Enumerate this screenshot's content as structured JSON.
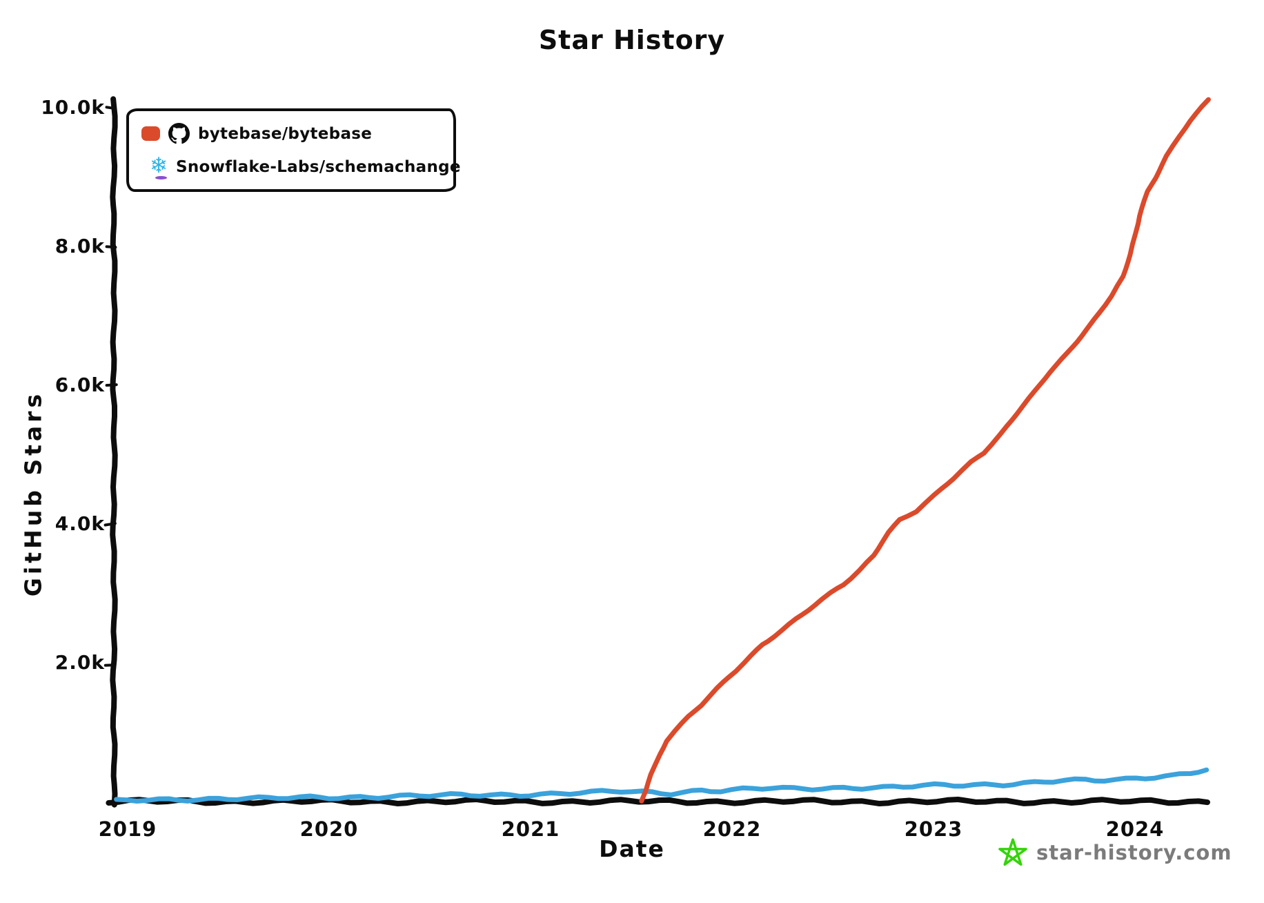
{
  "watermark": {
    "text": "star-history.com",
    "text_color": "#7b7b7b",
    "star_color": "#35d30a"
  },
  "icons": {
    "github": "github-octocat-mark",
    "snowflake_glyph": "❄",
    "snowflake_color": "#29B5E8",
    "snowflake_accent": "#8A4FD3",
    "watermark_star": "green-doodle-star"
  },
  "axis_color": "#0d0d0d",
  "chart_data": {
    "type": "line",
    "title": "Star History",
    "xlabel": "Date",
    "ylabel": "GitHub Stars",
    "grid": false,
    "legend_position": "top-left",
    "xlim": [
      2018.93,
      2024.36
    ],
    "ylim": [
      0,
      10100
    ],
    "x_ticks": [
      {
        "value": 2019,
        "label": "2019"
      },
      {
        "value": 2020,
        "label": "2020"
      },
      {
        "value": 2021,
        "label": "2021"
      },
      {
        "value": 2022,
        "label": "2022"
      },
      {
        "value": 2023,
        "label": "2023"
      },
      {
        "value": 2024,
        "label": "2024"
      }
    ],
    "y_ticks": [
      {
        "value": 2000,
        "label": "2.0k"
      },
      {
        "value": 4000,
        "label": "4.0k"
      },
      {
        "value": 6000,
        "label": "6.0k"
      },
      {
        "value": 8000,
        "label": "8.0k"
      },
      {
        "value": 10000,
        "label": "10.0k"
      }
    ],
    "series": [
      {
        "name": "bytebase/bytebase",
        "color": "#DB4A2B",
        "points": [
          [
            2021.545,
            0
          ],
          [
            2021.57,
            180
          ],
          [
            2021.6,
            420
          ],
          [
            2021.64,
            680
          ],
          [
            2021.68,
            900
          ],
          [
            2021.72,
            1030
          ],
          [
            2021.78,
            1210
          ],
          [
            2021.85,
            1400
          ],
          [
            2021.92,
            1620
          ],
          [
            2021.98,
            1800
          ],
          [
            2022.06,
            2020
          ],
          [
            2022.15,
            2280
          ],
          [
            2022.25,
            2480
          ],
          [
            2022.35,
            2700
          ],
          [
            2022.45,
            2920
          ],
          [
            2022.55,
            3130
          ],
          [
            2022.63,
            3340
          ],
          [
            2022.7,
            3560
          ],
          [
            2022.78,
            3900
          ],
          [
            2022.83,
            4060
          ],
          [
            2022.92,
            4200
          ],
          [
            2023.0,
            4400
          ],
          [
            2023.1,
            4670
          ],
          [
            2023.18,
            4890
          ],
          [
            2023.25,
            5050
          ],
          [
            2023.33,
            5300
          ],
          [
            2023.42,
            5620
          ],
          [
            2023.5,
            5900
          ],
          [
            2023.58,
            6200
          ],
          [
            2023.66,
            6460
          ],
          [
            2023.74,
            6750
          ],
          [
            2023.82,
            7050
          ],
          [
            2023.89,
            7320
          ],
          [
            2023.94,
            7560
          ],
          [
            2023.98,
            7900
          ],
          [
            2024.02,
            8450
          ],
          [
            2024.06,
            8800
          ],
          [
            2024.1,
            9000
          ],
          [
            2024.16,
            9330
          ],
          [
            2024.22,
            9590
          ],
          [
            2024.28,
            9830
          ],
          [
            2024.33,
            10000
          ],
          [
            2024.36,
            10100
          ]
        ]
      },
      {
        "name": "Snowflake-Labs/schemachange",
        "color": "#3BA2DB",
        "points": [
          [
            2018.94,
            10
          ],
          [
            2019.1,
            30
          ],
          [
            2019.3,
            45
          ],
          [
            2019.5,
            55
          ],
          [
            2019.7,
            50
          ],
          [
            2019.9,
            65
          ],
          [
            2020.1,
            75
          ],
          [
            2020.3,
            85
          ],
          [
            2020.5,
            90
          ],
          [
            2020.7,
            100
          ],
          [
            2020.9,
            110
          ],
          [
            2021.1,
            120
          ],
          [
            2021.3,
            135
          ],
          [
            2021.45,
            155
          ],
          [
            2021.55,
            145
          ],
          [
            2021.7,
            135
          ],
          [
            2021.85,
            175
          ],
          [
            2021.95,
            165
          ],
          [
            2022.1,
            185
          ],
          [
            2022.2,
            200
          ],
          [
            2022.3,
            190
          ],
          [
            2022.45,
            205
          ],
          [
            2022.6,
            215
          ],
          [
            2022.75,
            210
          ],
          [
            2022.9,
            225
          ],
          [
            2023.05,
            240
          ],
          [
            2023.2,
            250
          ],
          [
            2023.35,
            265
          ],
          [
            2023.5,
            285
          ],
          [
            2023.65,
            310
          ],
          [
            2023.8,
            305
          ],
          [
            2023.95,
            330
          ],
          [
            2024.05,
            360
          ],
          [
            2024.15,
            385
          ],
          [
            2024.22,
            405
          ],
          [
            2024.28,
            430
          ],
          [
            2024.36,
            470
          ]
        ]
      }
    ]
  }
}
